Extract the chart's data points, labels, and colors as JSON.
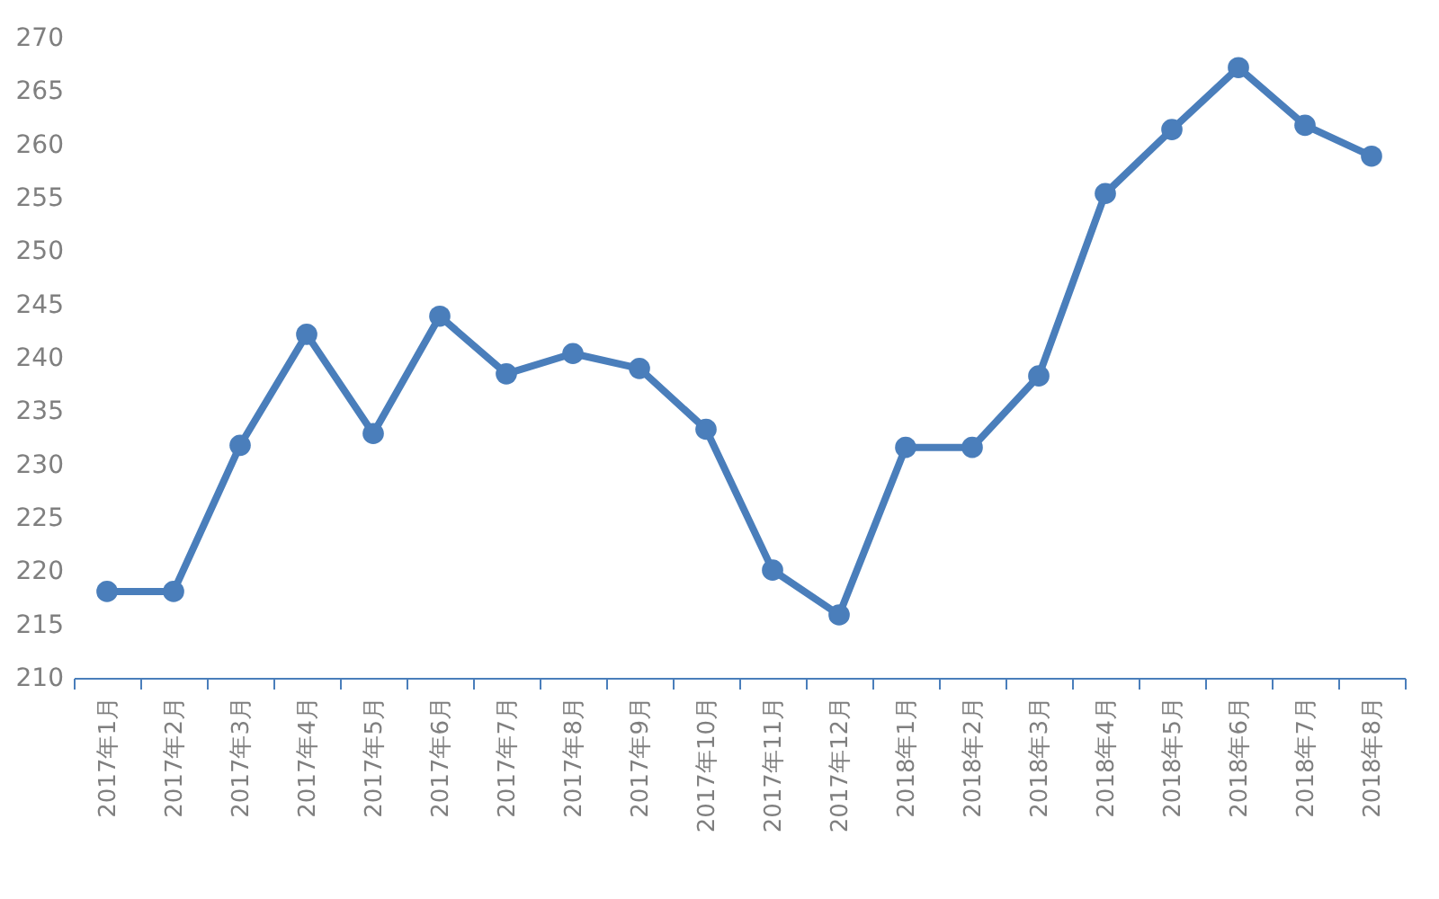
{
  "chart_data": {
    "type": "line",
    "categories": [
      "2017年1月",
      "2017年2月",
      "2017年3月",
      "2017年4月",
      "2017年5月",
      "2017年6月",
      "2017年7月",
      "2017年8月",
      "2017年9月",
      "2017年10月",
      "2017年11月",
      "2017年12月",
      "2018年1月",
      "2018年2月",
      "2018年3月",
      "2018年4月",
      "2018年5月",
      "2018年6月",
      "2018年7月",
      "2018年8月"
    ],
    "series": [
      {
        "color": "#4a7ebb",
        "values": [
          218.1,
          218.1,
          231.8,
          242.2,
          232.9,
          243.9,
          238.5,
          240.4,
          239,
          233.3,
          220.1,
          215.9,
          231.6,
          231.6,
          238.3,
          255.4,
          261.4,
          267.2,
          261.8,
          258.9
        ]
      }
    ],
    "ylim": [
      210,
      270
    ],
    "yticks": [
      210,
      215,
      220,
      225,
      230,
      235,
      240,
      245,
      250,
      255,
      260,
      265,
      270
    ],
    "grid": false,
    "legend": false,
    "marker": "circle",
    "line_style": "solid"
  }
}
